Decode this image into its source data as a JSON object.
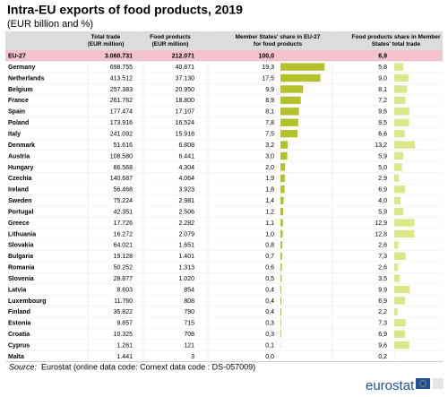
{
  "header": {
    "title": "Intra-EU exports of food products, 2019",
    "subtitle": "(EUR billion and %)"
  },
  "table": {
    "columns": [
      "",
      "Total trade (EUR million)",
      "Food products (EUR million)",
      "Member States' share in EU-27 for food products",
      "Food products share in Member States' total trade"
    ],
    "rows": [
      [
        "EU-27",
        "3.060.731",
        "212.071",
        "100,0",
        "6,9"
      ],
      [
        "Germany",
        "698.755",
        "40.871",
        "19,3",
        "5,8"
      ],
      [
        "Netherlands",
        "413.512",
        "37.130",
        "17,5",
        "9,0"
      ],
      [
        "Belgium",
        "257.383",
        "20.950",
        "9,9",
        "8,1"
      ],
      [
        "France",
        "261.762",
        "18.800",
        "8,9",
        "7,2"
      ],
      [
        "Spain",
        "177.474",
        "17.107",
        "8,1",
        "9,6"
      ],
      [
        "Poland",
        "173.916",
        "16.524",
        "7,8",
        "9,5"
      ],
      [
        "Italy",
        "241.092",
        "15.918",
        "7,5",
        "6,6"
      ],
      [
        "Denmark",
        "51.616",
        "6.808",
        "3,2",
        "13,2"
      ],
      [
        "Austria",
        "108.580",
        "6.441",
        "3,0",
        "5,9"
      ],
      [
        "Hungary",
        "86.568",
        "4.304",
        "2,0",
        "5,0"
      ],
      [
        "Czechia",
        "140.687",
        "4.064",
        "1,9",
        "2,9"
      ],
      [
        "Ireland",
        "56.468",
        "3.923",
        "1,8",
        "6,9"
      ],
      [
        "Sweden",
        "75.224",
        "2.981",
        "1,4",
        "4,0"
      ],
      [
        "Portugal",
        "42.351",
        "2.506",
        "1,2",
        "5,9"
      ],
      [
        "Greece",
        "17.726",
        "2.282",
        "1,1",
        "12,9"
      ],
      [
        "Lithuania",
        "16.272",
        "2.079",
        "1,0",
        "12,8"
      ],
      [
        "Slovakia",
        "64.021",
        "1.651",
        "0,8",
        "2,6"
      ],
      [
        "Bulgaria",
        "19.128",
        "1.401",
        "0,7",
        "7,3"
      ],
      [
        "Romania",
        "50.252",
        "1.313",
        "0,6",
        "2,6"
      ],
      [
        "Slovenia",
        "28.877",
        "1.020",
        "0,5",
        "3,5"
      ],
      [
        "Latvia",
        "8.603",
        "854",
        "0,4",
        "9,9"
      ],
      [
        "Luxembourg",
        "11.760",
        "808",
        "0,4",
        "6,9"
      ],
      [
        "Finland",
        "35.822",
        "790",
        "0,4",
        "2,2"
      ],
      [
        "Estonia",
        "9.857",
        "715",
        "0,3",
        "7,3"
      ],
      [
        "Croatia",
        "10.325",
        "708",
        "0,3",
        "6,9"
      ],
      [
        "Cyprus",
        "1.261",
        "121",
        "0,1",
        "9,6"
      ],
      [
        "Malta",
        "1.441",
        "3",
        "0,0",
        "0,2"
      ]
    ],
    "bar_colors": [
      "#b4c22a",
      "#dde78a"
    ]
  },
  "footer": {
    "source_label": "Source:",
    "source_text": "Eurostat (online data code: Comext data code : DS-057009)",
    "logo": "eurostat"
  }
}
